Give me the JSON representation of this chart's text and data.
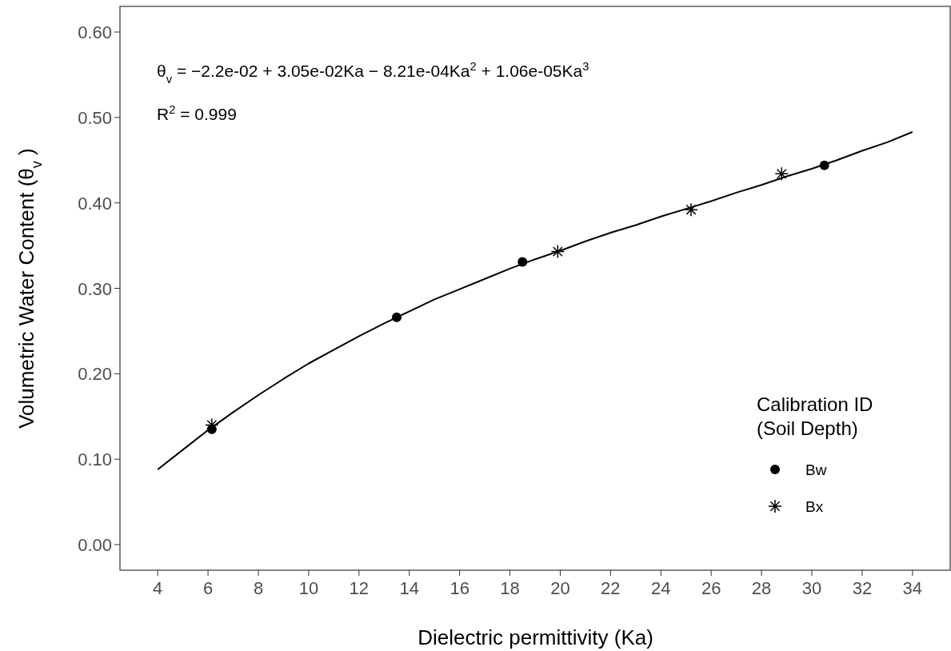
{
  "chart_data": {
    "type": "scatter",
    "xlabel": "Dielectric permittivity (Ka)",
    "ylabel": "Volumetric Water Content (θ$_{v}$)",
    "legend_title": "Calibration ID\n(Soil Depth)",
    "legend": "bottom right",
    "grid": false,
    "annotations": [
      "θ$_{v}$ = −2.2e-02 + 3.05e-02Ka − 8.21e-04Ka$^{2}$ + 1.06e-05Ka$^{3}$",
      "R$^{2}$ = 0.999"
    ],
    "xlim": [
      2.5,
      35.5
    ],
    "xticks": [
      4,
      6,
      8,
      10,
      12,
      14,
      16,
      18,
      20,
      22,
      24,
      26,
      28,
      30,
      32,
      34
    ],
    "ylim": [
      -0.03,
      0.63
    ],
    "yticks": [
      {
        "value": 0,
        "label": "0.00"
      },
      {
        "value": 0.1,
        "label": "0.10"
      },
      {
        "value": 0.2,
        "label": "0.20"
      },
      {
        "value": 0.3,
        "label": "0.30"
      },
      {
        "value": 0.4,
        "label": "0.40"
      },
      {
        "value": 0.5,
        "label": "0.50"
      },
      {
        "value": 0.6,
        "label": "0.60"
      }
    ],
    "series": [
      {
        "type": "line",
        "color": "#000000",
        "marker": "none",
        "line_style": "solid",
        "x": [
          4,
          5,
          6,
          7,
          8,
          9,
          10,
          11,
          12,
          13,
          14,
          15,
          16,
          17,
          18,
          19,
          20,
          21,
          22,
          23,
          24,
          25,
          26,
          27,
          28,
          29,
          30,
          31,
          32,
          33,
          34
        ],
        "values": [
          0.088,
          0.111,
          0.134,
          0.155,
          0.175,
          0.194,
          0.212,
          0.228,
          0.244,
          0.259,
          0.273,
          0.287,
          0.299,
          0.311,
          0.323,
          0.334,
          0.344,
          0.355,
          0.365,
          0.374,
          0.384,
          0.393,
          0.402,
          0.412,
          0.421,
          0.431,
          0.44,
          0.45,
          0.461,
          0.471,
          0.483
        ]
      },
      {
        "name": "Bw",
        "color": "#000000",
        "marker": "circle",
        "x": [
          6.15,
          13.5,
          18.5,
          30.5
        ],
        "values": [
          0.135,
          0.266,
          0.331,
          0.444
        ]
      },
      {
        "name": "Bx",
        "color": "#000000",
        "marker": "cross",
        "x": [
          6.15,
          19.9,
          25.2,
          28.8
        ],
        "values": [
          0.14,
          0.343,
          0.392,
          0.434
        ]
      }
    ]
  }
}
